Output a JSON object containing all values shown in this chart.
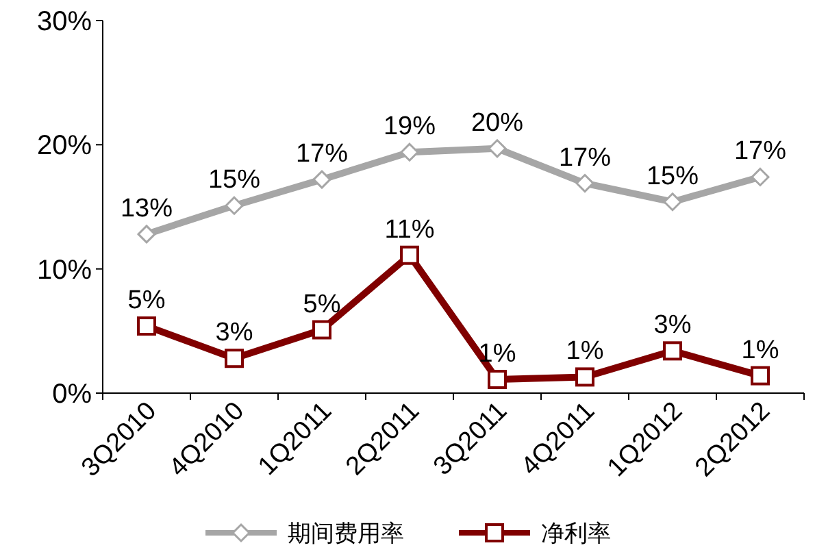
{
  "chart_data": {
    "type": "line",
    "categories": [
      "3Q2010",
      "4Q2010",
      "1Q2011",
      "2Q2011",
      "3Q2011",
      "4Q2011",
      "1Q2012",
      "2Q2012"
    ],
    "series": [
      {
        "name": "期间费用率",
        "color": "#a6a6a6",
        "marker": "diamond",
        "values": [
          12.8,
          15.1,
          17.2,
          19.4,
          19.7,
          16.9,
          15.4,
          17.4
        ],
        "value_labels": [
          "13%",
          "15%",
          "17%",
          "19%",
          "20%",
          "17%",
          "15%",
          "17%"
        ]
      },
      {
        "name": "净利率",
        "color": "#800000",
        "marker": "square",
        "values": [
          5.4,
          2.8,
          5.1,
          11.1,
          1.1,
          1.3,
          3.4,
          1.4
        ],
        "value_labels": [
          "5%",
          "3%",
          "5%",
          "11%",
          "1%",
          "1%",
          "3%",
          "1%"
        ]
      }
    ],
    "ylim": [
      0,
      30
    ],
    "yticks": [
      {
        "value": 0,
        "label": "0%"
      },
      {
        "value": 10,
        "label": "10%"
      },
      {
        "value": 20,
        "label": "20%"
      },
      {
        "value": 30,
        "label": "30%"
      }
    ],
    "grid": false,
    "legend": "bottom",
    "line_style": "solid"
  }
}
